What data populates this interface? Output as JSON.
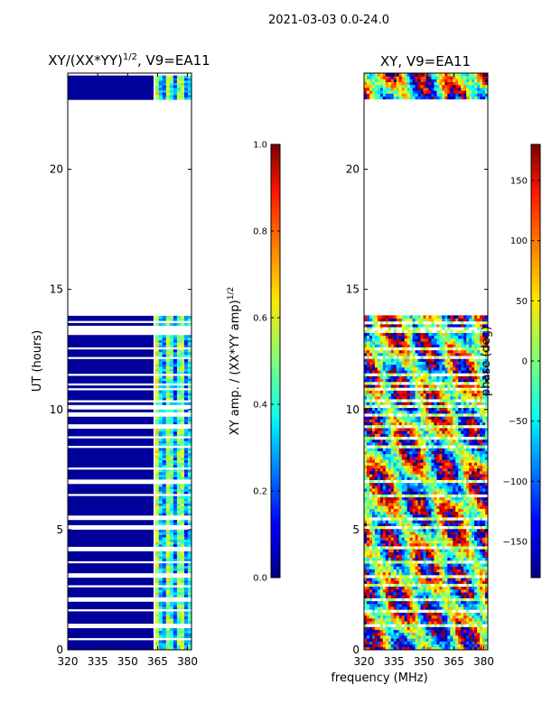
{
  "suptitle": "2021-03-03 0.0-24.0",
  "xlabel_common": "frequency (MHz)",
  "chart_data": [
    {
      "type": "heatmap",
      "title_main": "XY/(XX*YY)",
      "title_sup": "1/2",
      "title_tail": ", V9=EA11",
      "xlim": [
        320,
        382
      ],
      "ylim": [
        0,
        24
      ],
      "xticks": [
        320,
        335,
        350,
        365,
        380
      ],
      "yticks": [
        0,
        5,
        10,
        15,
        20
      ],
      "ylabel": "UT (hours)",
      "data_rows_hours": [
        [
          0.0,
          0.35
        ],
        [
          0.45,
          0.9
        ],
        [
          1.0,
          4.1
        ],
        [
          4.2,
          13.9
        ],
        [
          22.8,
          23.9
        ]
      ],
      "gap_hours": [
        0.95,
        1.6,
        2.05,
        2.6,
        3.05,
        3.6,
        4.15,
        5.05,
        5.45,
        6.4,
        6.95,
        7.5,
        8.4,
        8.8,
        9.25,
        9.75,
        10.05,
        10.3,
        10.8,
        11.0,
        11.4,
        12.1,
        12.5,
        13.15,
        13.35,
        13.6
      ],
      "colorbar": {
        "ticks": [
          "0.0",
          "0.2",
          "0.4",
          "0.6",
          "0.8",
          "1.0"
        ],
        "tick_values": [
          0.0,
          0.2,
          0.4,
          0.6,
          0.8,
          1.0
        ],
        "range": [
          0.0,
          1.0
        ],
        "label_main": "XY amp. / (XX*YY amp)",
        "label_sup": "1/2"
      }
    },
    {
      "type": "heatmap",
      "title_main": "XY, V9=EA11",
      "xlim": [
        320,
        382
      ],
      "ylim": [
        0,
        24
      ],
      "xticks": [
        320,
        335,
        350,
        365,
        380
      ],
      "yticks": [
        0,
        5,
        10,
        15,
        20
      ],
      "data_rows_hours": [
        [
          0.0,
          13.9
        ],
        [
          22.8,
          23.9
        ]
      ],
      "colorbar": {
        "ticks": [
          "−150",
          "−100",
          "−50",
          "0",
          "50",
          "100",
          "150"
        ],
        "tick_values": [
          -150,
          -100,
          -50,
          0,
          50,
          100,
          150
        ],
        "range": [
          -180,
          180
        ],
        "label": "phase (deg)"
      }
    }
  ]
}
